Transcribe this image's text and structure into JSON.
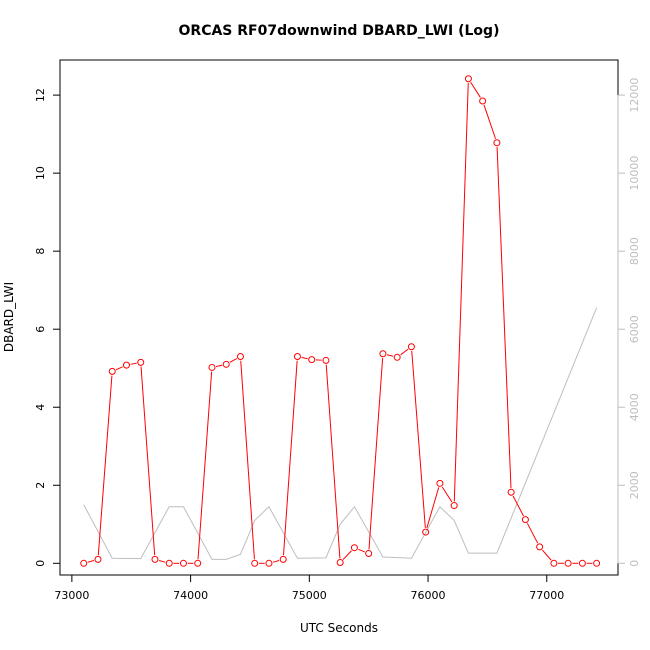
{
  "chart_data": {
    "type": "line",
    "title": "ORCAS RF07downwind DBARD_LWI (Log)",
    "xlabel": "UTC Seconds",
    "ylabel": "DBARD_LWI",
    "xlim": [
      72900,
      77600
    ],
    "ylim": [
      -0.3,
      12.9
    ],
    "y2lim": [
      -300,
      12900
    ],
    "x_ticks": [
      73000,
      74000,
      75000,
      76000,
      77000
    ],
    "y_ticks": [
      0,
      2,
      4,
      6,
      8,
      10,
      12
    ],
    "y2_ticks": [
      0,
      2000,
      4000,
      6000,
      8000,
      10000,
      12000
    ],
    "grid": false,
    "series": [
      {
        "color": "#ff0000",
        "axis": "left",
        "marker": "open-circle",
        "x": [
          73100,
          73220,
          73340,
          73460,
          73580,
          73700,
          73820,
          73940,
          74060,
          74180,
          74300,
          74420,
          74540,
          74660,
          74780,
          74900,
          75020,
          75140,
          75260,
          75380,
          75500,
          75620,
          75740,
          75860,
          75980,
          76100,
          76220,
          76340,
          76460,
          76580,
          76700,
          76820,
          76940,
          77060,
          77180,
          77300,
          77420
        ],
        "y": [
          0.0,
          0.1,
          4.92,
          5.08,
          5.15,
          0.1,
          0.0,
          0.0,
          0.0,
          5.02,
          5.1,
          5.3,
          0.0,
          0.0,
          0.1,
          5.3,
          5.22,
          5.2,
          0.02,
          0.4,
          0.25,
          5.37,
          5.28,
          5.55,
          0.8,
          2.05,
          1.48,
          12.42,
          11.85,
          10.78,
          1.82,
          1.12,
          0.42,
          0.0,
          0.0,
          0.0,
          0.0
        ]
      },
      {
        "color": "#bebebe",
        "axis": "right",
        "marker": "none",
        "x": [
          73100,
          73340,
          73580,
          73820,
          73940,
          74180,
          74300,
          74420,
          74540,
          74660,
          74900,
          75140,
          75260,
          75380,
          75620,
          75860,
          76100,
          76220,
          76340,
          76580,
          77420
        ],
        "y": [
          1500,
          130,
          120,
          1450,
          1450,
          100,
          100,
          230,
          1100,
          1450,
          130,
          140,
          1000,
          1450,
          160,
          130,
          1450,
          1100,
          260,
          260,
          6550
        ]
      }
    ]
  }
}
